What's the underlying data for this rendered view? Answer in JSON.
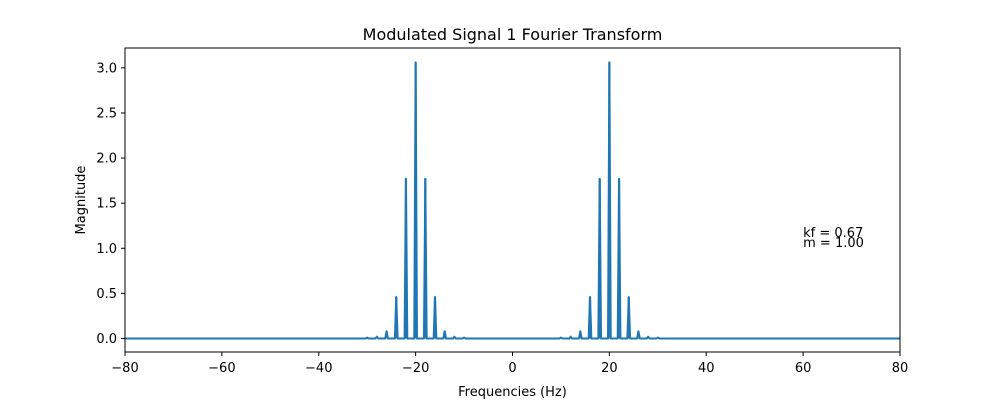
{
  "chart_data": {
    "type": "line",
    "title": "Modulated Signal 1 Fourier Transform",
    "xlabel": "Frequencies (Hz)",
    "ylabel": "Magnitude",
    "xlim": [
      -80,
      80
    ],
    "ylim": [
      -0.15,
      3.22
    ],
    "grid": false,
    "legend": "none",
    "line_color": "#1f77b4",
    "x_ticks": [
      -80,
      -60,
      -40,
      -20,
      0,
      20,
      40,
      60,
      80
    ],
    "x_tick_labels": [
      "−80",
      "−60",
      "−40",
      "−20",
      "0",
      "20",
      "40",
      "60",
      "80"
    ],
    "y_ticks": [
      0.0,
      0.5,
      1.0,
      1.5,
      2.0,
      2.5,
      3.0
    ],
    "y_tick_labels": [
      "0.0",
      "0.5",
      "1.0",
      "1.5",
      "2.0",
      "2.5",
      "3.0"
    ],
    "series": [
      {
        "peaks": [
          {
            "x": -30,
            "y": 0.01
          },
          {
            "x": -28,
            "y": 0.02
          },
          {
            "x": -26,
            "y": 0.08
          },
          {
            "x": -24,
            "y": 0.46
          },
          {
            "x": -22,
            "y": 1.77
          },
          {
            "x": -20,
            "y": 3.06
          },
          {
            "x": -18,
            "y": 1.77
          },
          {
            "x": -16,
            "y": 0.46
          },
          {
            "x": -14,
            "y": 0.08
          },
          {
            "x": -12,
            "y": 0.02
          },
          {
            "x": -10,
            "y": 0.01
          },
          {
            "x": 10,
            "y": 0.01
          },
          {
            "x": 12,
            "y": 0.02
          },
          {
            "x": 14,
            "y": 0.08
          },
          {
            "x": 16,
            "y": 0.46
          },
          {
            "x": 18,
            "y": 1.77
          },
          {
            "x": 20,
            "y": 3.06
          },
          {
            "x": 22,
            "y": 1.77
          },
          {
            "x": 24,
            "y": 0.46
          },
          {
            "x": 26,
            "y": 0.08
          },
          {
            "x": 28,
            "y": 0.02
          },
          {
            "x": 30,
            "y": 0.01
          }
        ]
      }
    ],
    "annotations": [
      {
        "text": "kf = 0.67",
        "x": 60,
        "y": 1.17
      },
      {
        "text": "m = 1.00",
        "x": 60,
        "y": 1.06
      }
    ]
  }
}
